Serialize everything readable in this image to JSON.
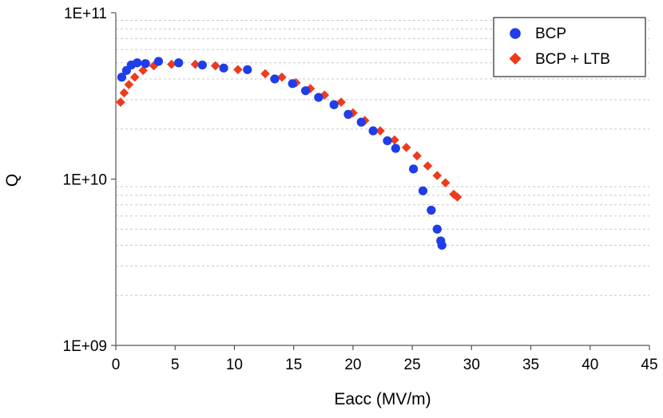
{
  "chart_data": {
    "type": "scatter",
    "title": "",
    "xlabel": "Eacc (MV/m)",
    "ylabel": "Q",
    "xlim": [
      0,
      45
    ],
    "ylim": [
      1000000000.0,
      100000000000.0
    ],
    "yscale": "log",
    "x_ticks": [
      0,
      5,
      10,
      15,
      20,
      25,
      30,
      35,
      40,
      45
    ],
    "x_tick_labels": [
      "0",
      "5",
      "10",
      "15",
      "20",
      "25",
      "30",
      "35",
      "40",
      "45"
    ],
    "y_tick_labels": [
      "1E+11",
      "1E+10",
      "1E+09"
    ],
    "y_ticks": [
      100000000000.0,
      10000000000.0,
      1000000000.0
    ],
    "grid": "horizontal minor dashed",
    "legend_position": "top-right",
    "series": [
      {
        "name": "BCP",
        "marker": "circle",
        "color": "#1f3de8",
        "points": [
          {
            "x": 0.5,
            "y": 41000000000.0
          },
          {
            "x": 0.9,
            "y": 45000000000.0
          },
          {
            "x": 1.3,
            "y": 48500000000.0
          },
          {
            "x": 1.8,
            "y": 50000000000.0
          },
          {
            "x": 2.5,
            "y": 49500000000.0
          },
          {
            "x": 3.6,
            "y": 51000000000.0
          },
          {
            "x": 5.3,
            "y": 50000000000.0
          },
          {
            "x": 7.3,
            "y": 48500000000.0
          },
          {
            "x": 9.1,
            "y": 46500000000.0
          },
          {
            "x": 11.1,
            "y": 45500000000.0
          },
          {
            "x": 13.4,
            "y": 40000000000.0
          },
          {
            "x": 14.9,
            "y": 37500000000.0
          },
          {
            "x": 16.0,
            "y": 34000000000.0
          },
          {
            "x": 17.1,
            "y": 31000000000.0
          },
          {
            "x": 18.4,
            "y": 28000000000.0
          },
          {
            "x": 19.6,
            "y": 24500000000.0
          },
          {
            "x": 20.7,
            "y": 22000000000.0
          },
          {
            "x": 21.7,
            "y": 19500000000.0
          },
          {
            "x": 22.9,
            "y": 17000000000.0
          },
          {
            "x": 23.6,
            "y": 15300000000.0
          },
          {
            "x": 25.1,
            "y": 11500000000.0
          },
          {
            "x": 25.9,
            "y": 8500000000.0
          },
          {
            "x": 26.6,
            "y": 6500000000.0
          },
          {
            "x": 27.1,
            "y": 5000000000.0
          },
          {
            "x": 27.4,
            "y": 4250000000.0
          },
          {
            "x": 27.5,
            "y": 4000000000.0
          }
        ]
      },
      {
        "name": "BCP + LTB",
        "marker": "diamond",
        "color": "#ee3b1d",
        "points": [
          {
            "x": 0.4,
            "y": 29000000000.0
          },
          {
            "x": 0.7,
            "y": 33000000000.0
          },
          {
            "x": 1.1,
            "y": 37000000000.0
          },
          {
            "x": 1.6,
            "y": 41000000000.0
          },
          {
            "x": 2.3,
            "y": 45000000000.0
          },
          {
            "x": 3.2,
            "y": 48000000000.0
          },
          {
            "x": 4.7,
            "y": 49000000000.0
          },
          {
            "x": 6.7,
            "y": 49000000000.0
          },
          {
            "x": 8.4,
            "y": 48000000000.0
          },
          {
            "x": 10.3,
            "y": 45500000000.0
          },
          {
            "x": 12.6,
            "y": 43000000000.0
          },
          {
            "x": 14.0,
            "y": 41000000000.0
          },
          {
            "x": 15.2,
            "y": 38000000000.0
          },
          {
            "x": 16.4,
            "y": 35000000000.0
          },
          {
            "x": 17.6,
            "y": 32000000000.0
          },
          {
            "x": 19.0,
            "y": 29000000000.0
          },
          {
            "x": 20.0,
            "y": 25000000000.0
          },
          {
            "x": 21.0,
            "y": 22500000000.0
          },
          {
            "x": 22.3,
            "y": 19500000000.0
          },
          {
            "x": 23.5,
            "y": 17200000000.0
          },
          {
            "x": 24.5,
            "y": 15500000000.0
          },
          {
            "x": 25.4,
            "y": 13800000000.0
          },
          {
            "x": 26.3,
            "y": 12000000000.0
          },
          {
            "x": 27.1,
            "y": 10500000000.0
          },
          {
            "x": 27.8,
            "y": 9500000000.0
          },
          {
            "x": 28.5,
            "y": 8100000000.0
          },
          {
            "x": 28.8,
            "y": 7800000000.0
          }
        ]
      }
    ]
  }
}
